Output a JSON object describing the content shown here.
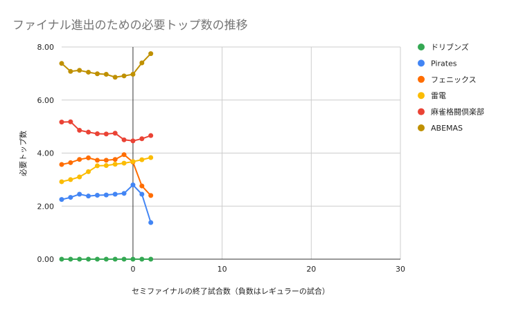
{
  "chart_data": {
    "type": "line",
    "title": "ファイナル進出のための必要トップ数の推移",
    "xlabel": "セミファイナルの終了試合数（負数はレギュラーの試合）",
    "ylabel": "必要トップ数",
    "xlim": [
      -8,
      30
    ],
    "ylim": [
      0,
      8
    ],
    "x_ticks": [
      0,
      10,
      20,
      30
    ],
    "y_ticks": [
      0,
      2,
      4,
      6,
      8
    ],
    "x_tick_labels": [
      "0",
      "10",
      "20",
      "30"
    ],
    "y_tick_labels": [
      "0.00",
      "2.00",
      "4.00",
      "6.00",
      "8.00"
    ],
    "grid": true,
    "vertical_zero_line": true,
    "legend_position": "right",
    "x": [
      -8,
      -7,
      -6,
      -5,
      -4,
      -3,
      -2,
      -1,
      0,
      1,
      2
    ],
    "series": [
      {
        "name": "ドリブンズ",
        "color": "#34a853",
        "values": [
          0,
          0,
          0,
          0,
          0,
          0,
          0,
          0,
          0,
          0,
          0
        ]
      },
      {
        "name": "Pirates",
        "color": "#4285f4",
        "values": [
          2.25,
          2.33,
          2.45,
          2.38,
          2.41,
          2.42,
          2.45,
          2.48,
          2.8,
          2.45,
          1.38
        ]
      },
      {
        "name": "フェニックス",
        "color": "#ff6d01",
        "values": [
          3.57,
          3.64,
          3.76,
          3.82,
          3.73,
          3.73,
          3.76,
          3.94,
          3.66,
          2.76,
          2.4
        ]
      },
      {
        "name": "雷電",
        "color": "#fbbc04",
        "values": [
          2.92,
          3.0,
          3.1,
          3.3,
          3.52,
          3.53,
          3.58,
          3.62,
          3.68,
          3.75,
          3.83
        ]
      },
      {
        "name": "麻雀格闘倶楽部",
        "color": "#ea4335",
        "values": [
          5.17,
          5.18,
          4.86,
          4.79,
          4.73,
          4.72,
          4.75,
          4.5,
          4.46,
          4.54,
          4.66
        ]
      },
      {
        "name": "ABEMAS",
        "color": "#bf9000",
        "values": [
          7.38,
          7.08,
          7.12,
          7.05,
          6.99,
          6.97,
          6.86,
          6.91,
          6.97,
          7.4,
          7.75
        ]
      }
    ]
  }
}
